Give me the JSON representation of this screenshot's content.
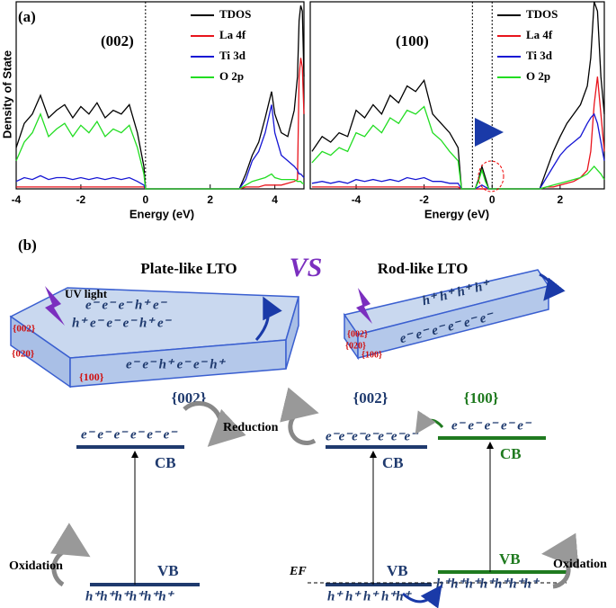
{
  "chart_data": [
    {
      "type": "line",
      "panel_label": "(a)",
      "annotation": "(002)",
      "xlabel": "Energy (eV)",
      "ylabel": "Density of State",
      "xlim": [
        -4,
        4.9
      ],
      "ylim": [
        0,
        100
      ],
      "xticks": [
        -4,
        -2,
        0,
        2,
        4
      ],
      "vlines": [
        0
      ],
      "x": [
        -4,
        -3.75,
        -3.5,
        -3.25,
        -3,
        -2.75,
        -2.5,
        -2.25,
        -2,
        -1.75,
        -1.5,
        -1.25,
        -1,
        -0.75,
        -0.5,
        -0.25,
        -0.05,
        0,
        2.9,
        3.1,
        3.3,
        3.5,
        3.7,
        3.9,
        4,
        4.2,
        4.4,
        4.6,
        4.7,
        4.75,
        4.8,
        4.85,
        4.9
      ],
      "series": [
        {
          "name": "TDOS",
          "color": "#000000",
          "values": [
            22,
            35,
            40,
            50,
            38,
            42,
            45,
            38,
            44,
            40,
            46,
            38,
            42,
            40,
            45,
            30,
            12,
            0,
            0,
            8,
            18,
            25,
            38,
            52,
            40,
            30,
            28,
            42,
            60,
            90,
            98,
            95,
            60
          ]
        },
        {
          "name": "La 4f",
          "color": "#e8141c",
          "values": [
            1,
            1,
            1,
            1,
            1,
            1,
            1,
            1,
            1,
            1,
            1,
            1,
            1,
            1,
            1,
            1,
            1,
            0,
            0,
            1,
            1,
            1,
            2,
            2,
            2,
            2,
            3,
            4,
            5,
            60,
            70,
            65,
            40
          ]
        },
        {
          "name": "Ti 3d",
          "color": "#1616d4",
          "values": [
            4,
            6,
            5,
            7,
            5,
            6,
            6,
            5,
            6,
            5,
            6,
            5,
            6,
            5,
            6,
            4,
            2,
            0,
            0,
            5,
            15,
            20,
            30,
            45,
            30,
            18,
            15,
            12,
            10,
            8,
            8,
            7,
            6
          ]
        },
        {
          "name": "O 2p",
          "color": "#22dd22",
          "values": [
            15,
            25,
            30,
            40,
            28,
            32,
            35,
            28,
            34,
            30,
            36,
            28,
            32,
            30,
            34,
            22,
            8,
            0,
            0,
            2,
            4,
            5,
            6,
            8,
            6,
            5,
            5,
            5,
            4,
            4,
            4,
            3,
            3
          ]
        }
      ]
    },
    {
      "type": "line",
      "annotation": "(100)",
      "xlabel": "Energy (eV)",
      "xlim": [
        -5.35,
        3.3
      ],
      "ylim": [
        0,
        100
      ],
      "xticks": [
        -4,
        -2,
        0,
        2
      ],
      "vlines": [
        -0.58,
        0
      ],
      "x": [
        -5.3,
        -5,
        -4.75,
        -4.5,
        -4.25,
        -4,
        -3.75,
        -3.5,
        -3.25,
        -3,
        -2.75,
        -2.5,
        -2.25,
        -2,
        -1.75,
        -1.5,
        -1.25,
        -1,
        -0.9,
        -0.5,
        -0.4,
        -0.3,
        -0.2,
        -0.1,
        1.4,
        1.6,
        1.8,
        2,
        2.2,
        2.4,
        2.6,
        2.8,
        2.9,
        3,
        3.1,
        3.2,
        3.3
      ],
      "series": [
        {
          "name": "TDOS",
          "color": "#000000",
          "values": [
            20,
            28,
            25,
            30,
            28,
            42,
            38,
            45,
            40,
            50,
            46,
            55,
            52,
            58,
            40,
            35,
            30,
            22,
            0,
            0,
            5,
            12,
            6,
            0,
            0,
            10,
            20,
            28,
            35,
            40,
            45,
            55,
            70,
            100,
            95,
            60,
            40
          ]
        },
        {
          "name": "La 4f",
          "color": "#e8141c",
          "values": [
            1,
            1,
            1,
            1,
            1,
            1,
            1,
            1,
            1,
            1,
            1,
            1,
            1,
            1,
            1,
            1,
            1,
            1,
            0,
            0,
            0,
            0,
            0,
            0,
            0,
            1,
            1,
            2,
            3,
            4,
            6,
            10,
            20,
            45,
            60,
            40,
            20
          ]
        },
        {
          "name": "Ti 3d",
          "color": "#1616d4",
          "values": [
            3,
            4,
            3,
            4,
            3,
            5,
            4,
            5,
            4,
            5,
            4,
            6,
            5,
            6,
            4,
            4,
            3,
            3,
            0,
            0,
            1,
            2,
            1,
            0,
            0,
            6,
            12,
            18,
            22,
            25,
            28,
            35,
            38,
            40,
            35,
            25,
            15
          ]
        },
        {
          "name": "O 2p",
          "color": "#22dd22",
          "values": [
            14,
            20,
            18,
            22,
            20,
            30,
            28,
            34,
            30,
            38,
            35,
            42,
            40,
            44,
            30,
            26,
            20,
            15,
            0,
            0,
            4,
            10,
            4,
            0,
            0,
            1,
            2,
            3,
            4,
            5,
            6,
            8,
            10,
            12,
            10,
            8,
            5
          ]
        }
      ]
    }
  ],
  "diagram": {
    "panel_label": "(b)",
    "left_title": "Plate-like LTO",
    "vs": "VS",
    "right_title": "Rod-like LTO",
    "light": "UV light",
    "plate_facets": [
      "{002}",
      "{020}",
      "{100}"
    ],
    "rod_facets": [
      "{002}",
      "{020}",
      "{100}"
    ],
    "plate_carriers": [
      "e⁻  e⁻  e⁻  h⁺  e⁻",
      "h⁺  e⁻  e⁻  e⁻  h⁺  e⁻",
      "e⁻  e⁻  h⁺  e⁻  e⁻ h⁺"
    ],
    "rod_carriers": [
      "h⁺ h⁺ h⁺ h⁺",
      "e⁻ e⁻ e⁻ e⁻ e⁻ e⁻"
    ],
    "left_facet": "{002}",
    "left_cb": "CB",
    "left_vb": "VB",
    "left_electrons": "e⁻ e⁻ e⁻ e⁻ e⁻ e⁻",
    "left_holes": "h⁺h⁺h⁺h⁺h⁺h⁺",
    "reduction": "Reduction",
    "left_oxidation": "Oxidation",
    "mid_facet": "{002}",
    "mid_cb": "CB",
    "mid_vb": "VB",
    "mid_electrons": "e⁻e⁻e⁻e⁻e⁻e⁻e⁻",
    "mid_holes": "h⁺  h⁺  h⁺  h⁺h⁺",
    "right_facet": "{100}",
    "right_cb": "CB",
    "right_vb": "VB",
    "right_electrons": "e⁻  e⁻  e⁻  e⁻  e⁻",
    "right_holes": "h⁺h⁺h⁺h⁺h⁺h⁺h⁺",
    "right_oxidation": "Oxidation",
    "fermi": "EF"
  }
}
